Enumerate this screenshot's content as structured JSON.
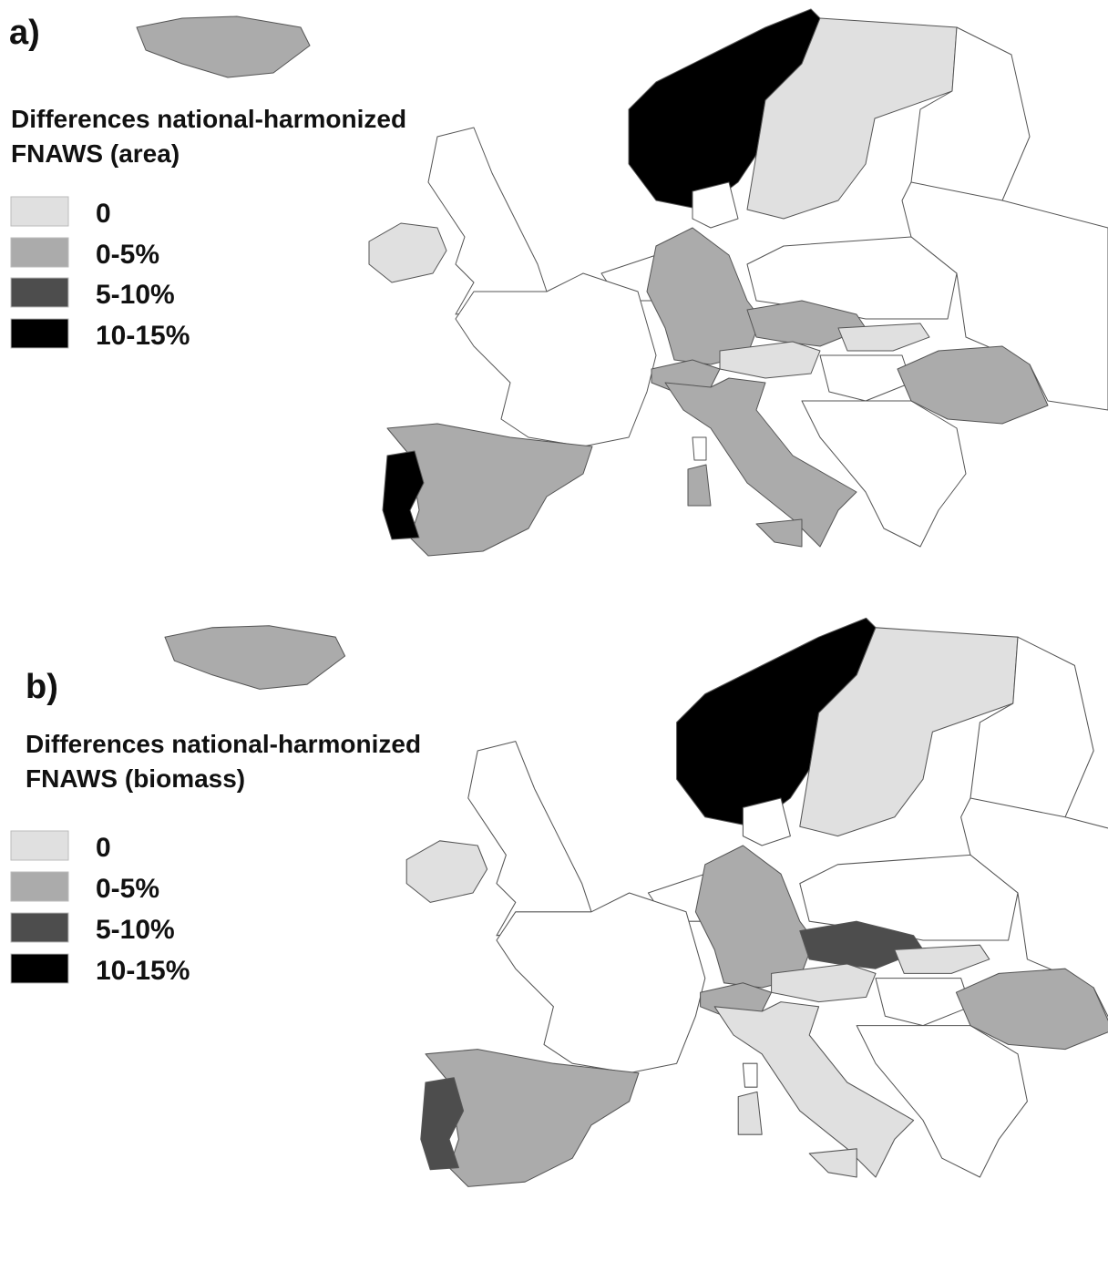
{
  "panels": [
    {
      "label": "a)",
      "legend": {
        "title": [
          "Differences national-harmonized",
          "FNAWS (area)"
        ],
        "items": [
          {
            "label": "0",
            "color": "#e0e0e0"
          },
          {
            "label": "0-5%",
            "color": "#ababab"
          },
          {
            "label": "5-10%",
            "color": "#4d4d4d"
          },
          {
            "label": "10-15%",
            "color": "#000000"
          }
        ]
      }
    },
    {
      "label": "b)",
      "legend": {
        "title": [
          "Differences national-harmonized",
          "FNAWS (biomass)"
        ],
        "items": [
          {
            "label": "0",
            "color": "#e0e0e0"
          },
          {
            "label": "0-5%",
            "color": "#ababab"
          },
          {
            "label": "5-10%",
            "color": "#4d4d4d"
          },
          {
            "label": "10-15%",
            "color": "#000000"
          }
        ]
      }
    }
  ]
}
